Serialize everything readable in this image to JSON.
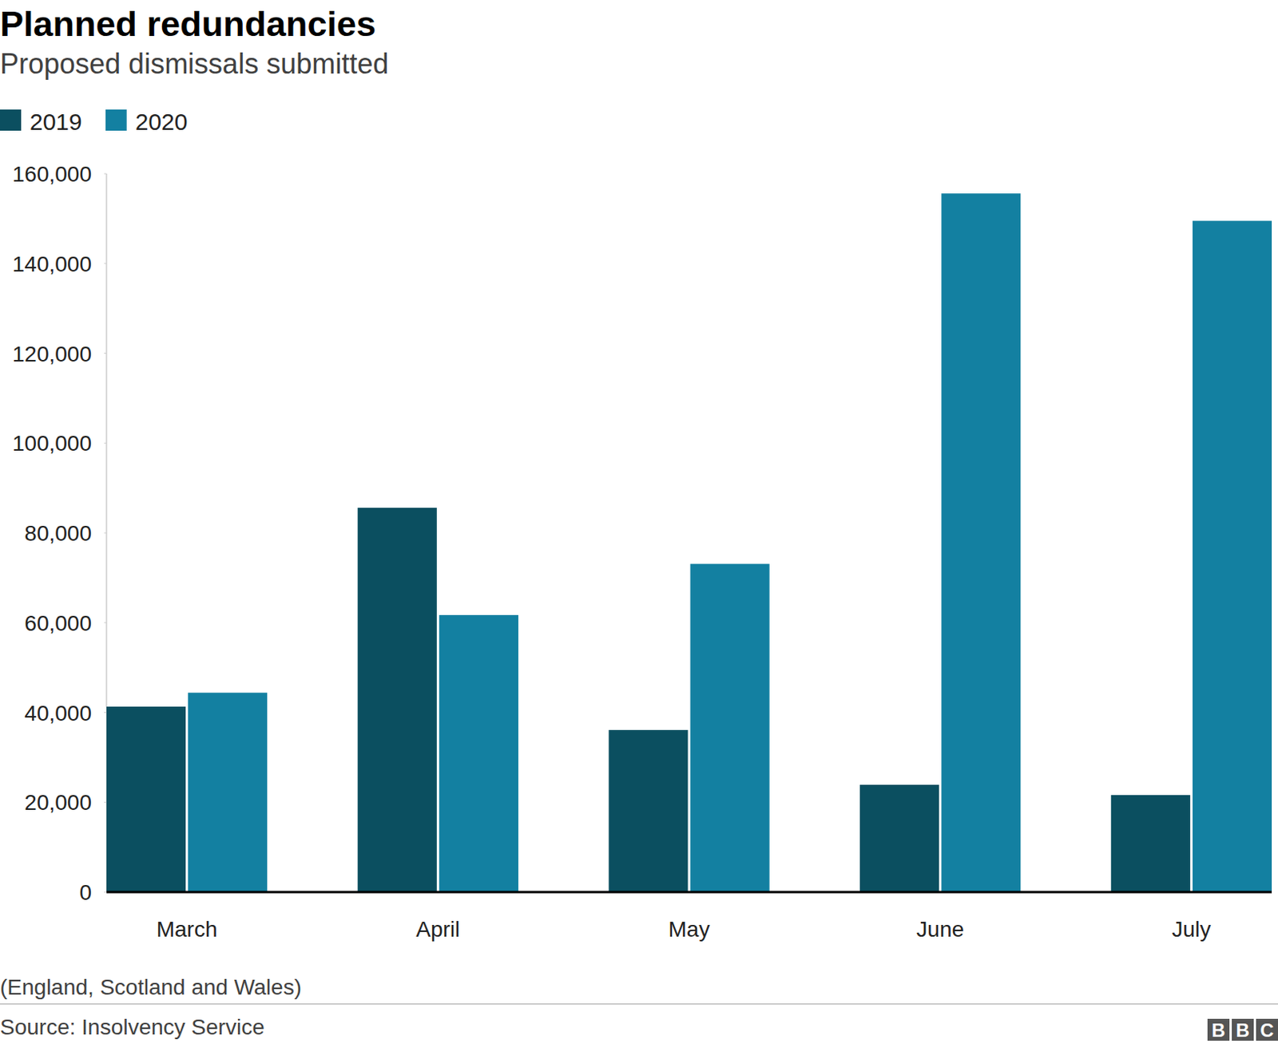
{
  "chart_data": {
    "type": "bar",
    "title": "Planned redundancies",
    "subtitle": "Proposed dismissals submitted",
    "note": "(England, Scotland and Wales)",
    "source": "Source: Insolvency Service",
    "logo": "BBC",
    "categories": [
      "March",
      "April",
      "May",
      "June",
      "July"
    ],
    "series": [
      {
        "name": "2019",
        "color": "#0b4f60",
        "values": [
          41300,
          85600,
          36100,
          23900,
          21600
        ]
      },
      {
        "name": "2020",
        "color": "#1380a1",
        "values": [
          44400,
          61700,
          73100,
          155600,
          149500
        ]
      }
    ],
    "ylim": [
      0,
      160000
    ],
    "yticks": [
      0,
      {
        "value": 20000,
        "label": "20,000"
      },
      {
        "value": 40000,
        "label": "40,000"
      },
      {
        "value": 60000,
        "label": "60,000"
      },
      {
        "value": 80000,
        "label": "80,000"
      },
      {
        "value": 100000,
        "label": "100,000"
      },
      {
        "value": 120000,
        "label": "120,000"
      },
      {
        "value": 140000,
        "label": "140,000"
      },
      {
        "value": 160000,
        "label": "160,000"
      }
    ],
    "grid": false,
    "legend": "top-left"
  }
}
